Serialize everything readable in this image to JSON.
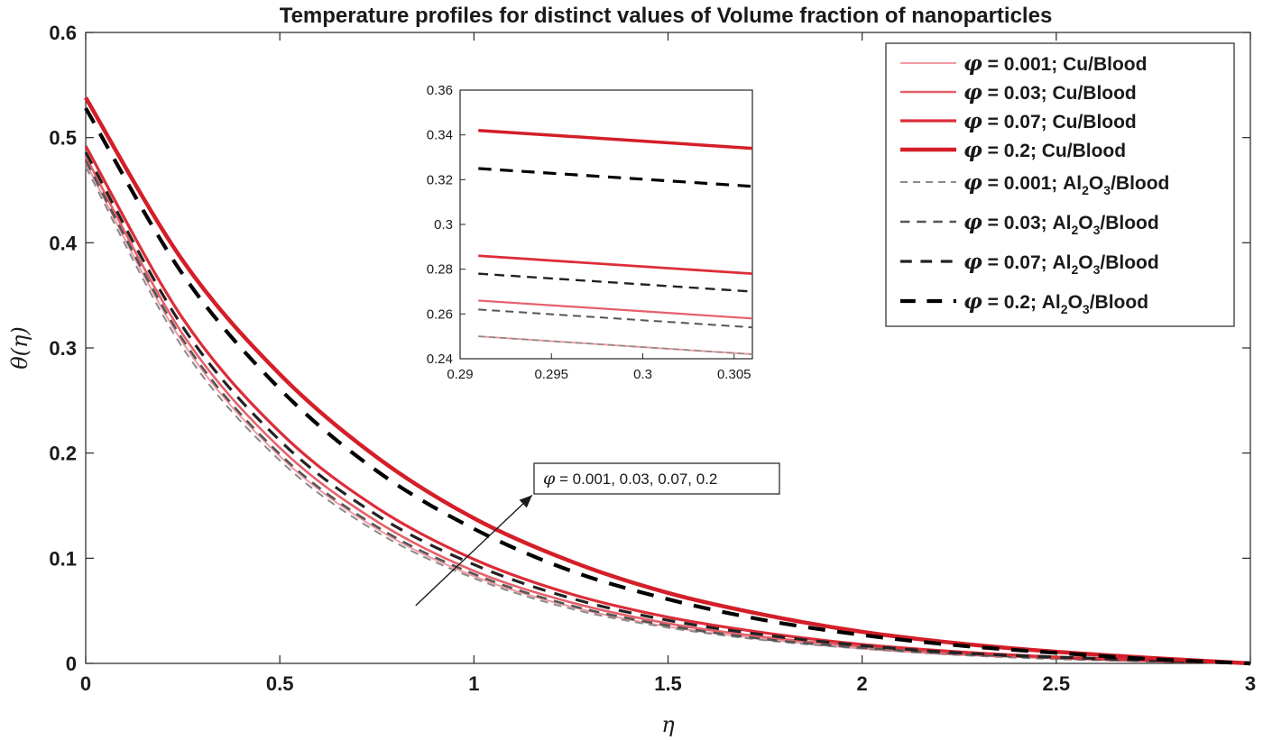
{
  "chart_data": {
    "type": "line",
    "title": "Temperature profiles for distinct values of Volume fraction of nanoparticles",
    "xlabel": "η",
    "ylabel": "θ(η)",
    "xlim": [
      0,
      3
    ],
    "ylim": [
      0,
      0.6
    ],
    "xticks": [
      "0",
      "0.5",
      "1",
      "1.5",
      "2",
      "2.5",
      "3"
    ],
    "yticks": [
      "0",
      "0.1",
      "0.2",
      "0.3",
      "0.4",
      "0.5",
      "0.6"
    ],
    "x": [
      0,
      0.25,
      0.5,
      0.75,
      1,
      1.25,
      1.5,
      1.75,
      2,
      2.25,
      2.5,
      2.75,
      3
    ],
    "series": [
      {
        "name": "φ = 0.001; Cu/Blood",
        "phi": "0.001",
        "fluid": "Cu/Blood",
        "style": "solid",
        "color": "#ef9aa2",
        "width": 2,
        "values": [
          0.476,
          0.305,
          0.197,
          0.128,
          0.083,
          0.054,
          0.035,
          0.023,
          0.014,
          0.008,
          0.005,
          0.002,
          0.0
        ]
      },
      {
        "name": "φ = 0.03; Cu/Blood",
        "phi": "0.03",
        "fluid": "Cu/Blood",
        "style": "solid",
        "color": "#e5606a",
        "width": 2.6,
        "values": [
          0.482,
          0.313,
          0.205,
          0.135,
          0.088,
          0.058,
          0.038,
          0.025,
          0.016,
          0.009,
          0.005,
          0.002,
          0.0
        ]
      },
      {
        "name": "φ = 0.07; Cu/Blood",
        "phi": "0.07",
        "fluid": "Cu/Blood",
        "style": "solid",
        "color": "#dc2d38",
        "width": 3.2,
        "values": [
          0.492,
          0.328,
          0.22,
          0.148,
          0.099,
          0.066,
          0.044,
          0.029,
          0.018,
          0.011,
          0.006,
          0.003,
          0.0
        ]
      },
      {
        "name": "φ = 0.2; Cu/Blood",
        "phi": "0.2",
        "fluid": "Cu/Blood",
        "style": "solid",
        "color": "#d41e28",
        "width": 4.5,
        "values": [
          0.538,
          0.383,
          0.275,
          0.196,
          0.138,
          0.097,
          0.067,
          0.046,
          0.03,
          0.019,
          0.011,
          0.005,
          0.0
        ]
      },
      {
        "name": "φ = 0.001; Al2O3/Blood",
        "phi": "0.001",
        "fluid": "Al2O3/Blood",
        "style": "dash",
        "color": "#8a8a8a",
        "width": 2,
        "values": [
          0.472,
          0.3,
          0.193,
          0.125,
          0.081,
          0.052,
          0.034,
          0.022,
          0.014,
          0.008,
          0.004,
          0.002,
          0.0
        ]
      },
      {
        "name": "φ = 0.03; Al2O3/Blood",
        "phi": "0.03",
        "fluid": "Al2O3/Blood",
        "style": "dash",
        "color": "#555555",
        "width": 2.6,
        "values": [
          0.478,
          0.308,
          0.199,
          0.13,
          0.085,
          0.055,
          0.036,
          0.023,
          0.015,
          0.009,
          0.005,
          0.002,
          0.0
        ]
      },
      {
        "name": "φ = 0.07; Al2O3/Blood",
        "phi": "0.07",
        "fluid": "Al2O3/Blood",
        "style": "dash",
        "color": "#222222",
        "width": 3.2,
        "values": [
          0.486,
          0.32,
          0.212,
          0.141,
          0.094,
          0.062,
          0.041,
          0.027,
          0.017,
          0.01,
          0.006,
          0.003,
          0.0
        ]
      },
      {
        "name": "φ = 0.2; Al2O3/Blood",
        "phi": "0.2",
        "fluid": "Al2O3/Blood",
        "style": "dash",
        "color": "#000000",
        "width": 4.2,
        "values": [
          0.528,
          0.37,
          0.261,
          0.183,
          0.128,
          0.088,
          0.061,
          0.041,
          0.027,
          0.017,
          0.01,
          0.004,
          0.0
        ]
      }
    ],
    "legend": {
      "placement": "top-right",
      "entries": [
        {
          "phi_sym": "φ",
          "text": "= 0.001; Cu/Blood"
        },
        {
          "phi_sym": "φ",
          "text": "= 0.03; Cu/Blood"
        },
        {
          "phi_sym": "φ",
          "text": "= 0.07; Cu/Blood"
        },
        {
          "phi_sym": "φ",
          "text": "= 0.2; Cu/Blood"
        },
        {
          "phi_sym": "φ",
          "text": "= 0.001; Al",
          "sub1": "2",
          "mid": "O",
          "sub2": "3",
          "tail": "/Blood"
        },
        {
          "phi_sym": "φ",
          "text": "= 0.03; Al",
          "sub1": "2",
          "mid": "O",
          "sub2": "3",
          "tail": "/Blood"
        },
        {
          "phi_sym": "φ",
          "text": "= 0.07; Al",
          "sub1": "2",
          "mid": "O",
          "sub2": "3",
          "tail": "/Blood"
        },
        {
          "phi_sym": "φ",
          "text": "= 0.2; Al",
          "sub1": "2",
          "mid": "O",
          "sub2": "3",
          "tail": "/Blood"
        }
      ]
    },
    "annotation": {
      "phi_sym": "φ",
      "text": "= 0.001, 0.03, 0.07, 0.2",
      "arrow_from": [
        0.85,
        0.055
      ],
      "arrow_to": [
        1.15,
        0.16
      ]
    },
    "inset": {
      "xlim": [
        0.29,
        0.306
      ],
      "ylim": [
        0.24,
        0.36
      ],
      "xticks": [
        "0.29",
        "0.295",
        "0.3",
        "0.305"
      ],
      "yticks": [
        "0.24",
        "0.26",
        "0.28",
        "0.3",
        "0.32",
        "0.34",
        "0.36"
      ],
      "x_start": 0.291,
      "x_end": 0.306,
      "lines": [
        {
          "style": "solid",
          "color": "#d41e28",
          "width": 3.5,
          "y_start": 0.342,
          "y_end": 0.334
        },
        {
          "style": "dash",
          "color": "#000000",
          "width": 3.2,
          "y_start": 0.325,
          "y_end": 0.317
        },
        {
          "style": "solid",
          "color": "#dc2d38",
          "width": 2.8,
          "y_start": 0.286,
          "y_end": 0.278
        },
        {
          "style": "dash",
          "color": "#222222",
          "width": 2.4,
          "y_start": 0.278,
          "y_end": 0.27
        },
        {
          "style": "solid",
          "color": "#e5606a",
          "width": 2.2,
          "y_start": 0.266,
          "y_end": 0.258
        },
        {
          "style": "dash",
          "color": "#555555",
          "width": 2,
          "y_start": 0.262,
          "y_end": 0.254
        },
        {
          "style": "solid",
          "color": "#ef9aa2",
          "width": 2,
          "y_start": 0.25,
          "y_end": 0.242
        },
        {
          "style": "dash",
          "color": "#8a8a8a",
          "width": 1.6,
          "y_start": 0.25,
          "y_end": 0.242
        }
      ]
    }
  }
}
